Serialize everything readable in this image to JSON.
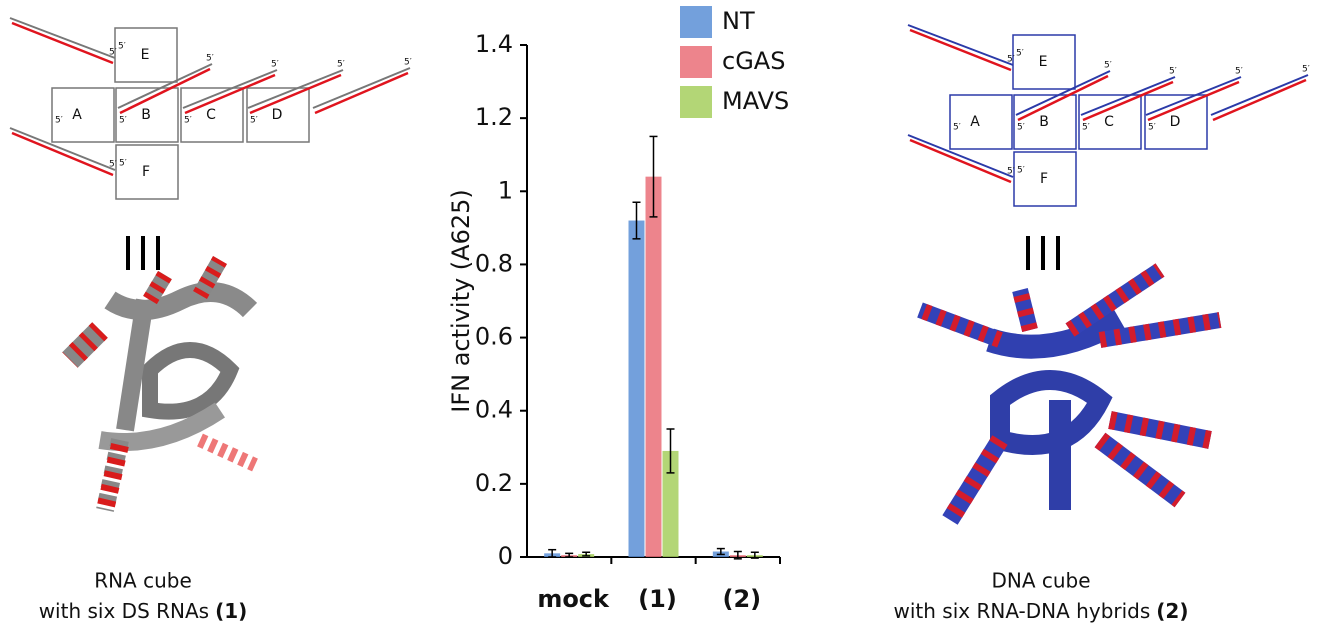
{
  "chart_data": {
    "type": "bar",
    "y_label": "IFN activity  (A625)",
    "categories": [
      "mock",
      "(1)",
      "(2)"
    ],
    "series": [
      {
        "name": "NT",
        "color": "#5b8fd6",
        "values": [
          0.01,
          0.92,
          0.015
        ],
        "errors": [
          0.01,
          0.05,
          0.008
        ]
      },
      {
        "name": "cGAS",
        "color": "#ea6f78",
        "values": [
          0.005,
          1.04,
          0.005
        ],
        "errors": [
          0.005,
          0.11,
          0.01
        ]
      },
      {
        "name": "MAVS",
        "color": "#a6cf5e",
        "values": [
          0.008,
          0.29,
          0.005
        ],
        "errors": [
          0.005,
          0.06,
          0.008
        ]
      }
    ],
    "ylim": [
      0,
      1.4
    ],
    "yticks": [
      0,
      0.2,
      0.4,
      0.6,
      0.8,
      1,
      1.2,
      1.4
    ]
  },
  "prime_label": "5′",
  "left_panel": {
    "boxes": [
      "E",
      "A",
      "B",
      "C",
      "D",
      "F"
    ],
    "caption_line1": "RNA cube",
    "caption_line2": "with six DS RNAs",
    "caption_ref": "(1)"
  },
  "right_panel": {
    "boxes": [
      "E",
      "A",
      "B",
      "C",
      "D",
      "F"
    ],
    "caption_line1": "DNA cube",
    "caption_line2": "with six RNA-DNA hybrids",
    "caption_ref": "(2)"
  }
}
